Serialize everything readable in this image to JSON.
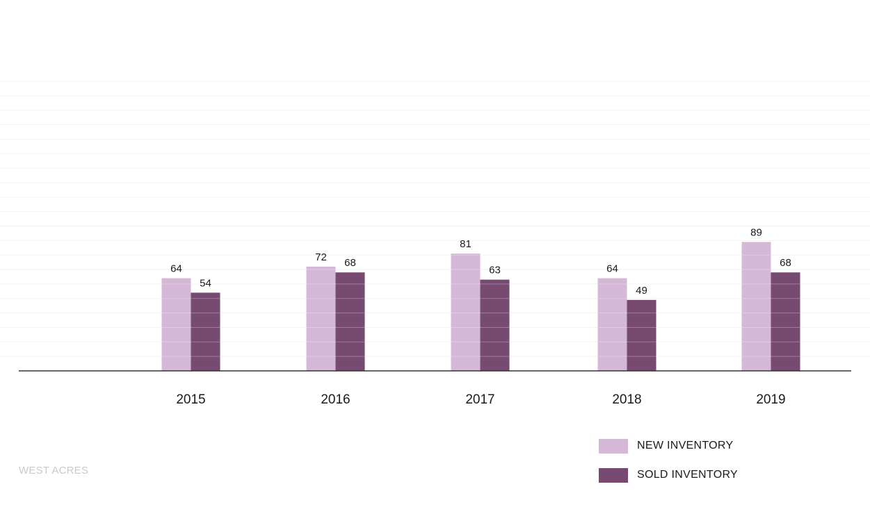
{
  "chart_data": {
    "type": "bar",
    "categories": [
      "2015",
      "2016",
      "2017",
      "2018",
      "2019"
    ],
    "series": [
      {
        "name": "NEW INVENTORY",
        "values": [
          64,
          72,
          81,
          64,
          89
        ],
        "color": "#d5b8d8"
      },
      {
        "name": "SOLD INVENTORY",
        "values": [
          54,
          68,
          63,
          49,
          68
        ],
        "color": "#764a71"
      }
    ],
    "ylim": [
      0,
      200
    ],
    "grid": true,
    "legend_position": "bottom-right"
  },
  "footer": {
    "text": "WEST ACRES"
  }
}
